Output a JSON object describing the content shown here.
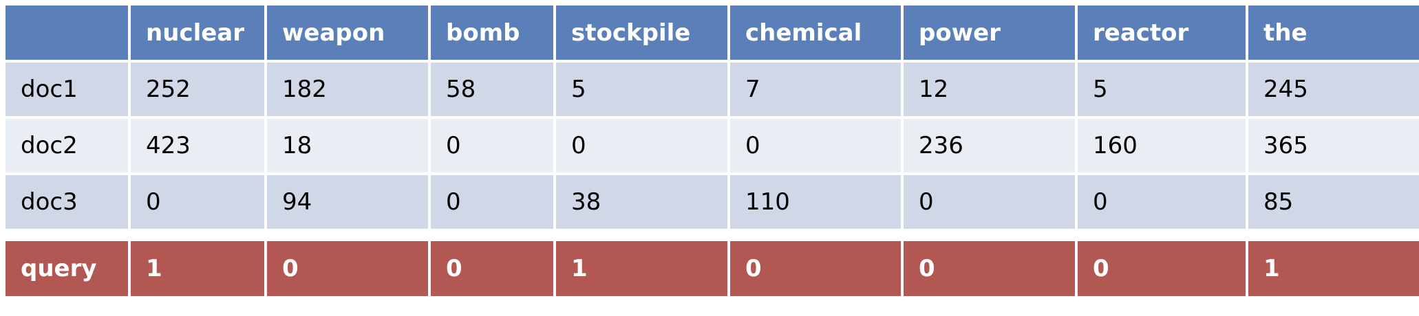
{
  "table": {
    "corner": "",
    "headers": [
      "nuclear",
      "weapon",
      "bomb",
      "stockpile",
      "chemical",
      "power",
      "reactor",
      "the"
    ],
    "rows": [
      {
        "label": "doc1",
        "values": [
          "252",
          "182",
          "58",
          "5",
          "7",
          "12",
          "5",
          "245"
        ]
      },
      {
        "label": "doc2",
        "values": [
          "423",
          "18",
          "0",
          "0",
          "0",
          "236",
          "160",
          "365"
        ]
      },
      {
        "label": "doc3",
        "values": [
          "0",
          "94",
          "0",
          "38",
          "110",
          "0",
          "0",
          "85"
        ]
      }
    ],
    "query": {
      "label": "query",
      "values": [
        "1",
        "0",
        "0",
        "1",
        "0",
        "0",
        "0",
        "1"
      ]
    }
  },
  "colors": {
    "header": "#5b80b9",
    "row_dark": "#d0d8e8",
    "row_light": "#e9edf4",
    "query": "#b25751"
  }
}
